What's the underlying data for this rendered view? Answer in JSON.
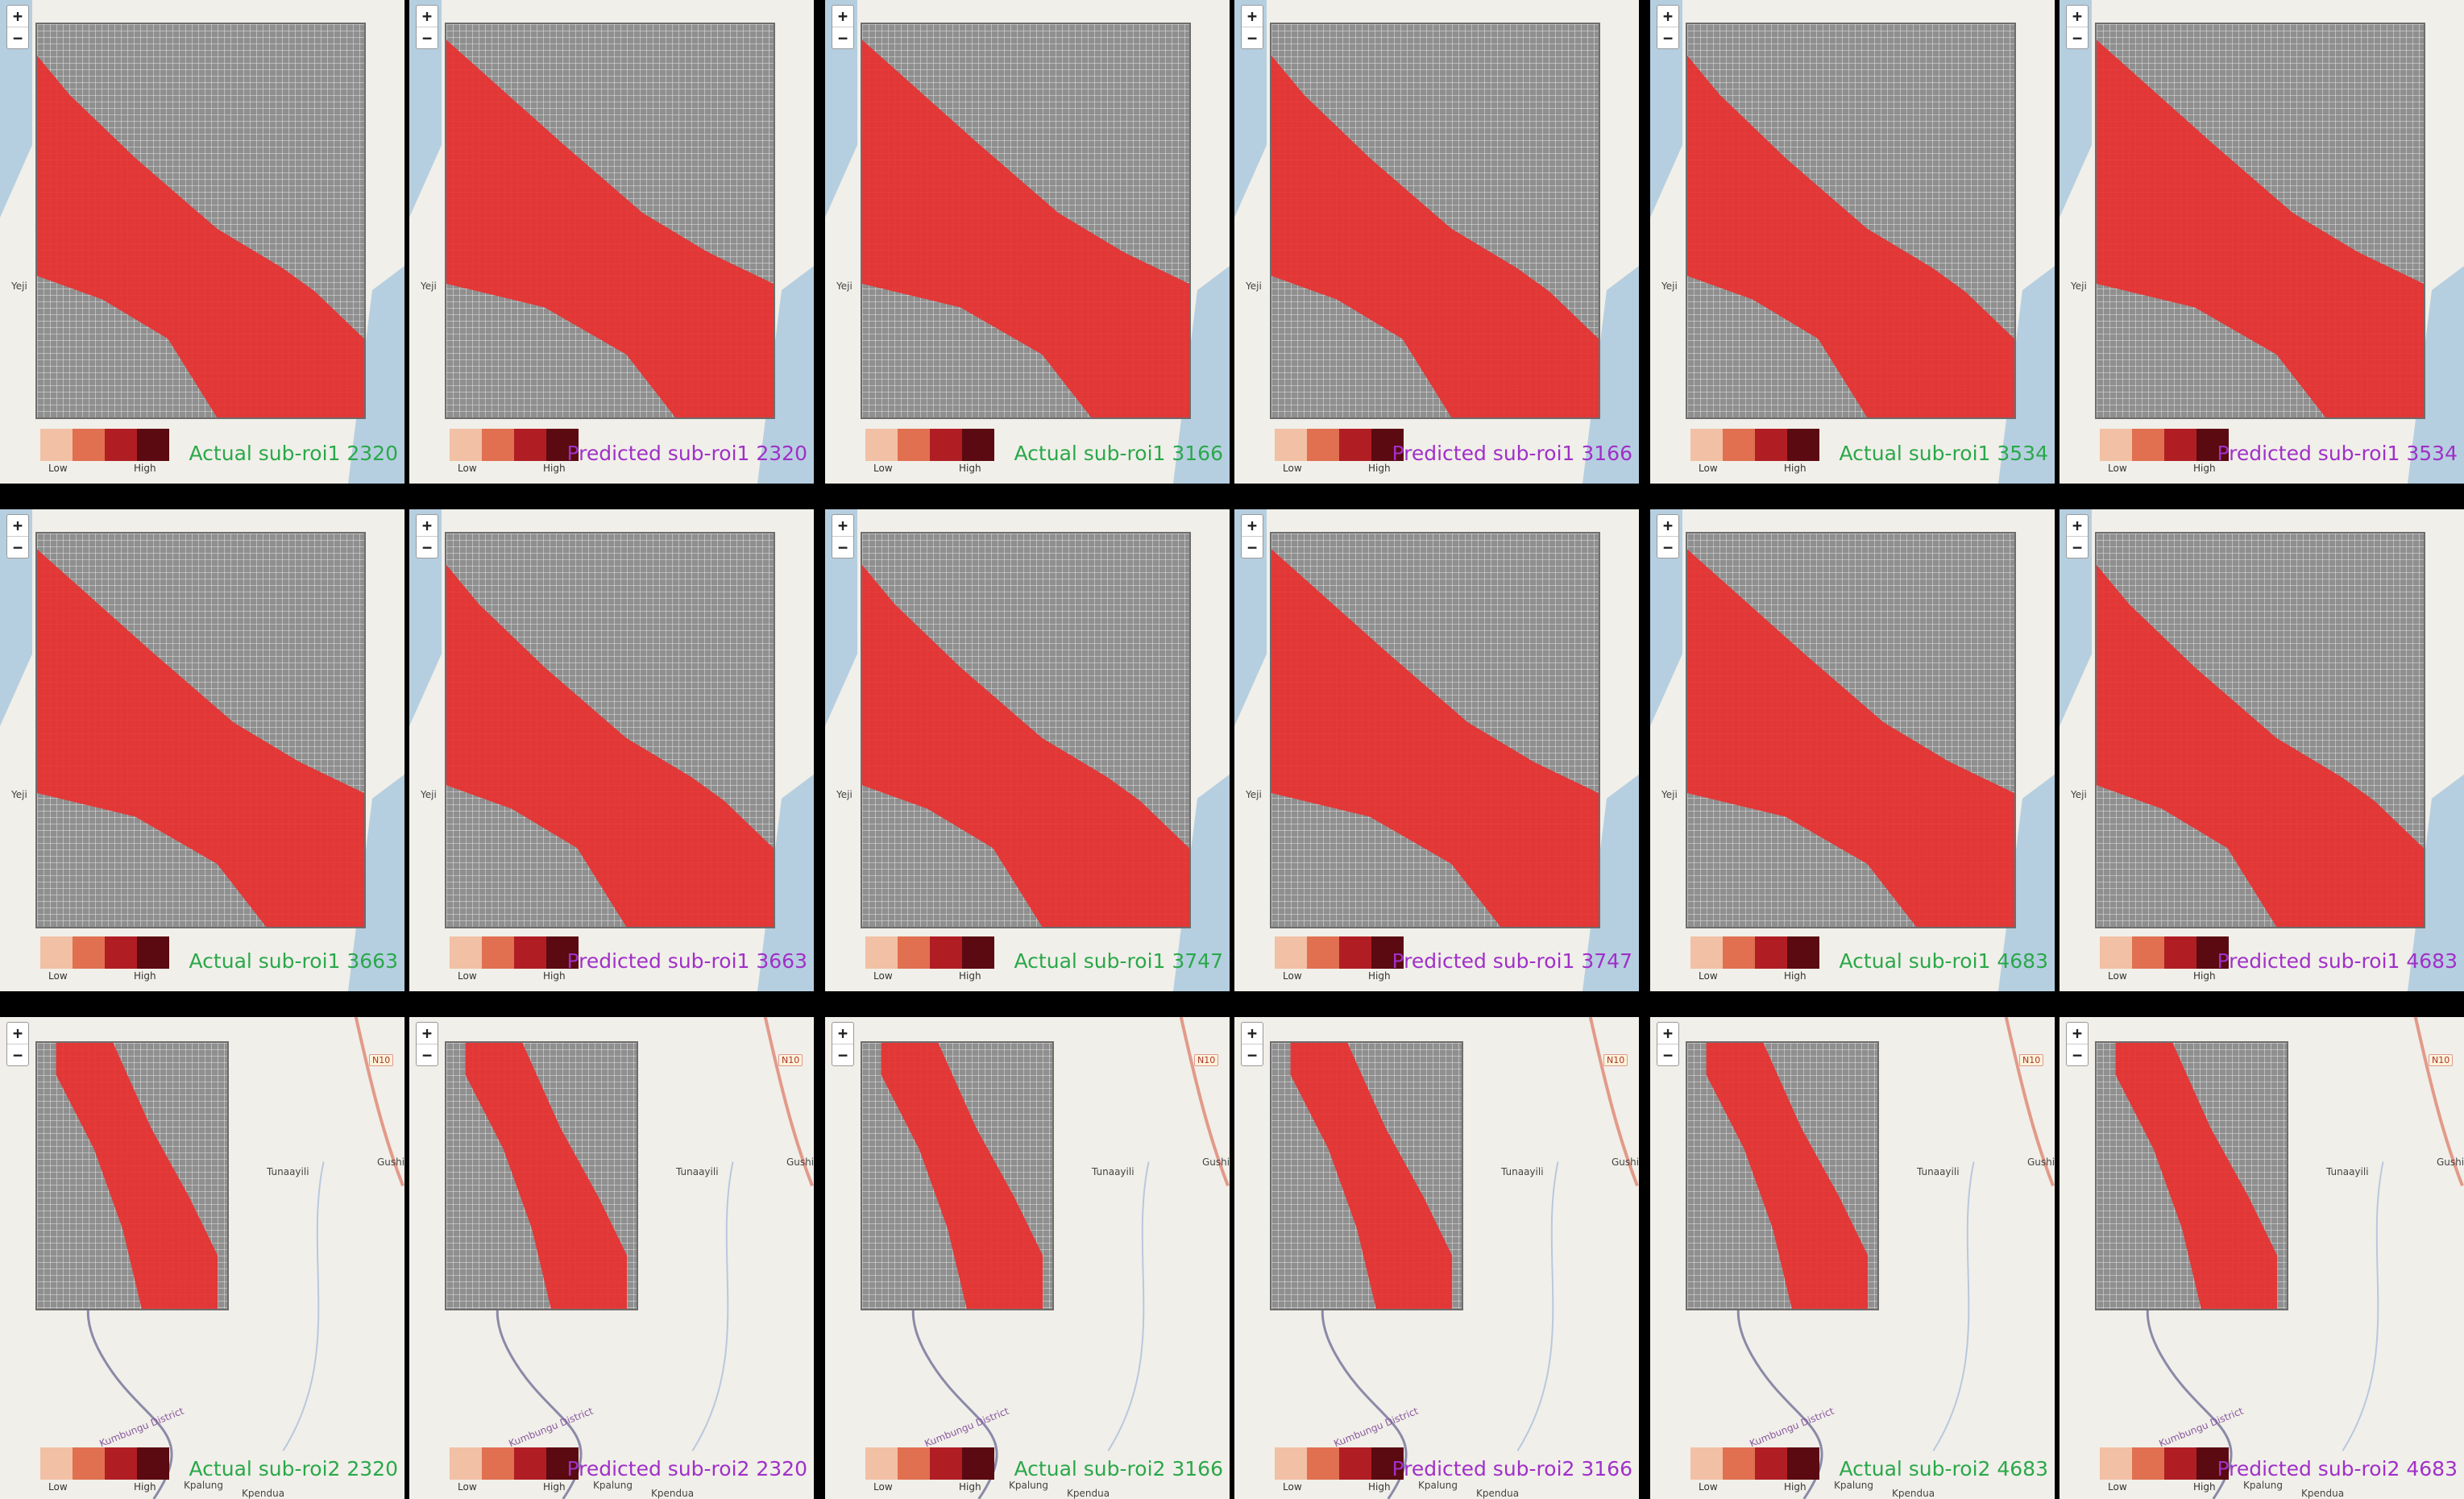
{
  "zoom_controls": {
    "zoom_in": "+",
    "zoom_out": "−"
  },
  "legend": {
    "low_label": "Low",
    "high_label": "High",
    "colors": [
      "#f2c0a4",
      "#e07050",
      "#b01e24",
      "#5a0a10"
    ]
  },
  "colors": {
    "grid_cell": "#8f8f8f",
    "flood_cell": "#e8302f",
    "water": "#b6cfe0",
    "land": "#f1efe9",
    "actual_text": "#2aa84a",
    "predicted_text": "#a030c8"
  },
  "map_labels": {
    "yeji": "Yeji",
    "tunaayili": "Tunaayili",
    "gushi": "Gushi",
    "n10": "N10",
    "kpalung": "Kpalung",
    "kpendua": "Kpendua",
    "district": "Kumbungu District"
  },
  "panels": [
    {
      "caption": "Actual sub-roi1 2320",
      "kind": "actual",
      "roi": 1
    },
    {
      "caption": "Predicted sub-roi1 2320",
      "kind": "predicted",
      "roi": 1
    },
    {
      "caption": "Actual sub-roi1 3166",
      "kind": "actual",
      "roi": 1
    },
    {
      "caption": "Predicted sub-roi1 3166",
      "kind": "predicted",
      "roi": 1
    },
    {
      "caption": "Actual sub-roi1 3534",
      "kind": "actual",
      "roi": 1
    },
    {
      "caption": "Predicted sub-roi1 3534",
      "kind": "predicted",
      "roi": 1
    },
    {
      "caption": "Actual sub-roi1 3663",
      "kind": "actual",
      "roi": 1
    },
    {
      "caption": "Predicted sub-roi1 3663",
      "kind": "predicted",
      "roi": 1
    },
    {
      "caption": "Actual sub-roi1 3747",
      "kind": "actual",
      "roi": 1
    },
    {
      "caption": "Predicted sub-roi1 3747",
      "kind": "predicted",
      "roi": 1
    },
    {
      "caption": "Actual sub-roi1 4683",
      "kind": "actual",
      "roi": 1
    },
    {
      "caption": "Predicted sub-roi1 4683",
      "kind": "predicted",
      "roi": 1
    },
    {
      "caption": "Actual sub-roi2 2320",
      "kind": "actual",
      "roi": 2
    },
    {
      "caption": "Predicted sub-roi2 2320",
      "kind": "predicted",
      "roi": 2
    },
    {
      "caption": "Actual sub-roi2 3166",
      "kind": "actual",
      "roi": 2
    },
    {
      "caption": "Predicted sub-roi2 3166",
      "kind": "predicted",
      "roi": 2
    },
    {
      "caption": "Actual sub-roi2 4683",
      "kind": "actual",
      "roi": 2
    },
    {
      "caption": "Predicted sub-roi2 4683",
      "kind": "predicted",
      "roi": 2
    }
  ]
}
